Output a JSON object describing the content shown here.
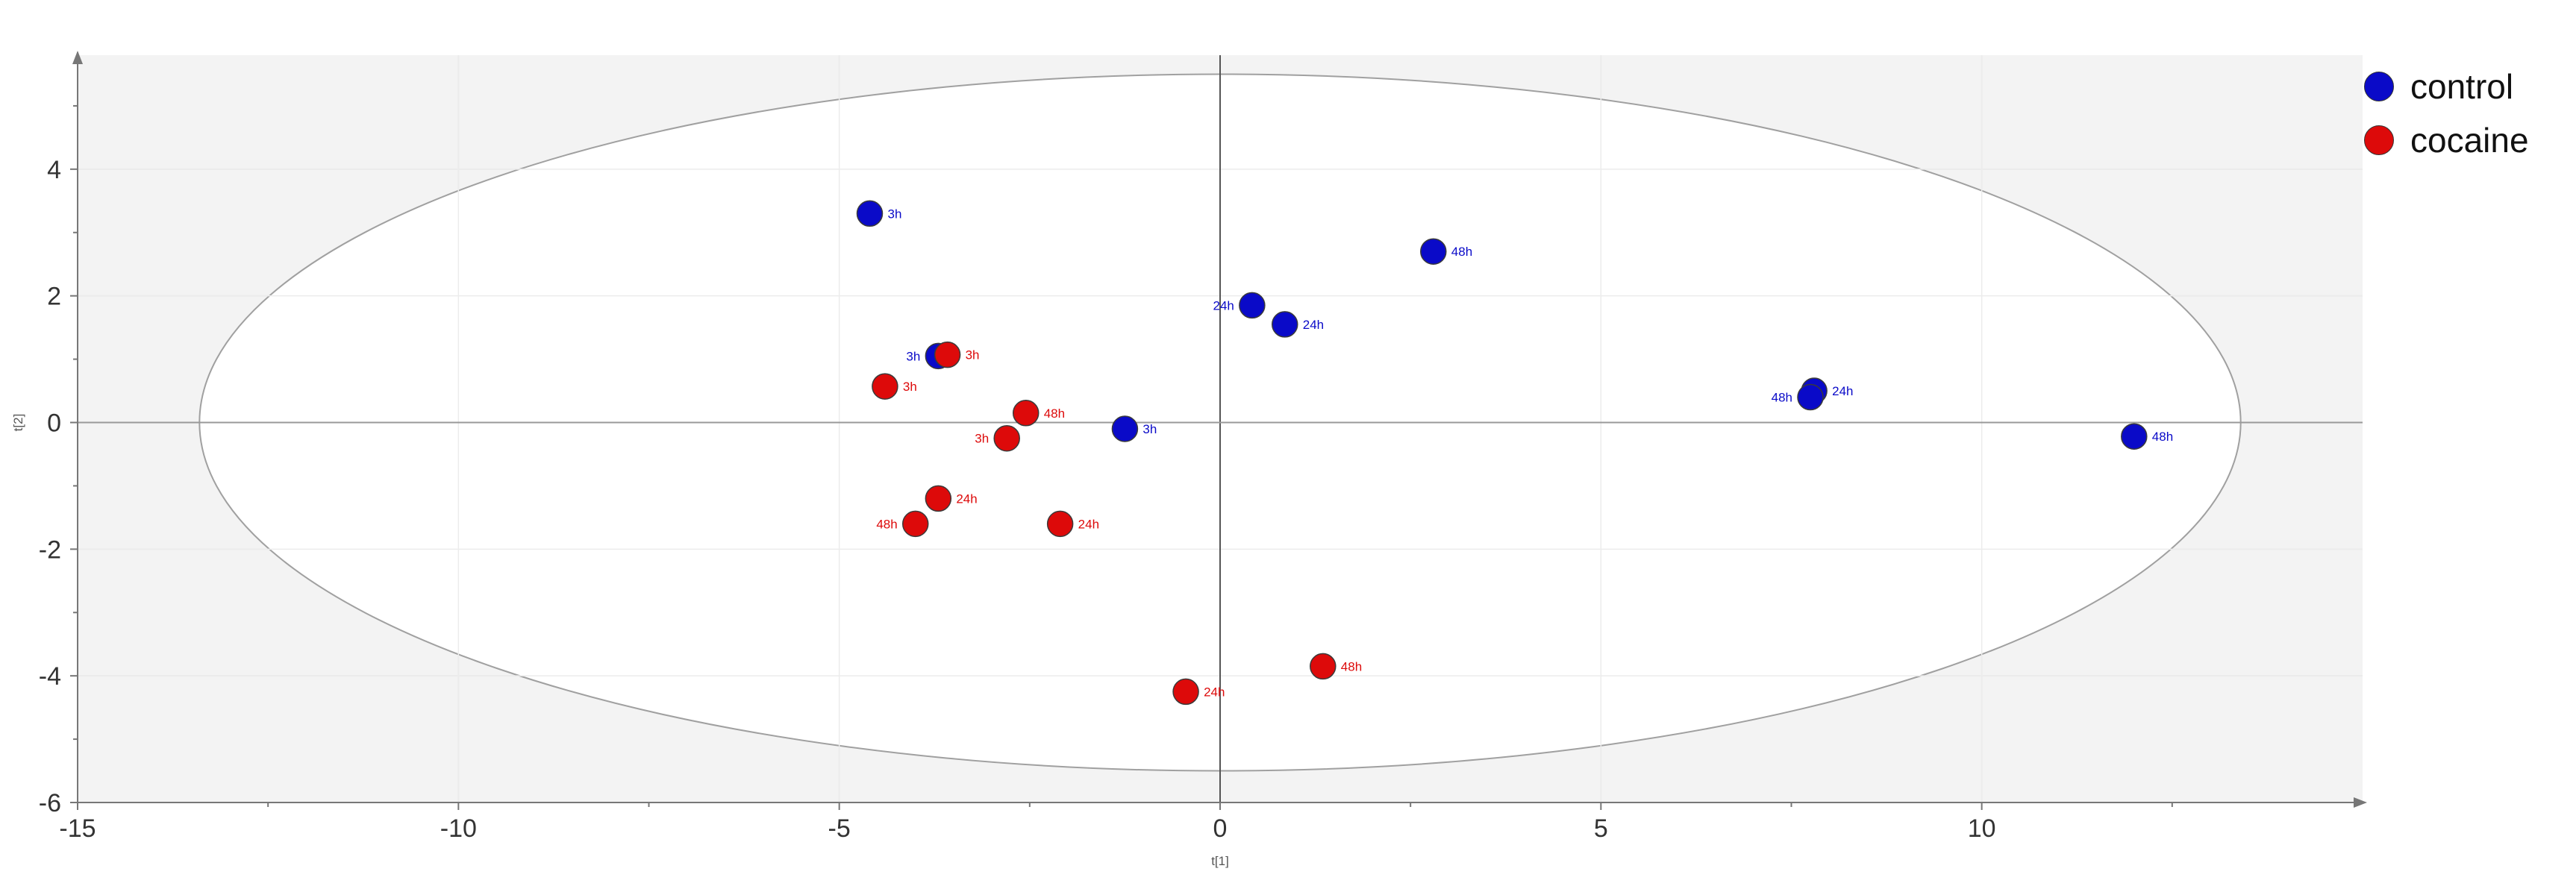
{
  "chart_data": {
    "type": "scatter",
    "xlabel": "t[1]",
    "ylabel": "t[2]",
    "xlim": [
      -15,
      15
    ],
    "ylim": [
      -6,
      5.8
    ],
    "x_ticks": [
      -15,
      -10,
      -5,
      0,
      5,
      10
    ],
    "y_ticks": [
      -6,
      -4,
      -2,
      0,
      2,
      4
    ],
    "grid": true,
    "ellipse": {
      "cx": 0,
      "cy": 0,
      "rx": 13.4,
      "ry": 5.5
    },
    "legend_position": "top-right",
    "series": [
      {
        "name": "control",
        "color": "#0a0ac8",
        "points": [
          {
            "x": -4.6,
            "y": 3.3,
            "label": "3h",
            "label_side": "right"
          },
          {
            "x": -3.7,
            "y": 1.05,
            "label": "3h",
            "label_side": "left"
          },
          {
            "x": -1.25,
            "y": -0.1,
            "label": "3h",
            "label_side": "right"
          },
          {
            "x": 0.42,
            "y": 1.85,
            "label": "24h",
            "label_side": "left"
          },
          {
            "x": 0.85,
            "y": 1.55,
            "label": "24h",
            "label_side": "right"
          },
          {
            "x": 2.8,
            "y": 2.7,
            "label": "48h",
            "label_side": "right"
          },
          {
            "x": 7.8,
            "y": 0.5,
            "label": "24h",
            "label_side": "right"
          },
          {
            "x": 7.75,
            "y": 0.4,
            "label": "48h",
            "label_side": "left"
          },
          {
            "x": 12.0,
            "y": -0.22,
            "label": "48h",
            "label_side": "right"
          }
        ]
      },
      {
        "name": "cocaine",
        "color": "#dd0a0a",
        "points": [
          {
            "x": -3.58,
            "y": 1.07,
            "label": "3h",
            "label_side": "right"
          },
          {
            "x": -4.4,
            "y": 0.57,
            "label": "3h",
            "label_side": "right"
          },
          {
            "x": -2.55,
            "y": 0.15,
            "label": "48h",
            "label_side": "right"
          },
          {
            "x": -2.8,
            "y": -0.25,
            "label": "3h",
            "label_side": "left"
          },
          {
            "x": -3.7,
            "y": -1.2,
            "label": "24h",
            "label_side": "right"
          },
          {
            "x": -4.0,
            "y": -1.6,
            "label": "48h",
            "label_side": "left"
          },
          {
            "x": -2.1,
            "y": -1.6,
            "label": "24h",
            "label_side": "right"
          },
          {
            "x": 1.35,
            "y": -3.85,
            "label": "48h",
            "label_side": "right"
          },
          {
            "x": -0.45,
            "y": -4.25,
            "label": "24h",
            "label_side": "right"
          }
        ]
      }
    ]
  }
}
